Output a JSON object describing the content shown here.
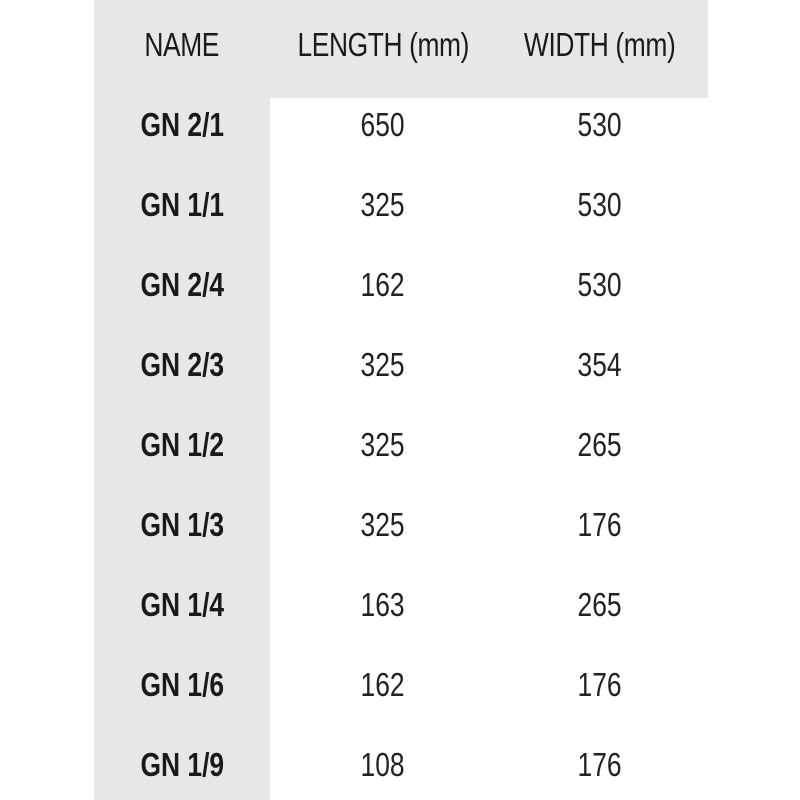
{
  "table": {
    "headers": [
      "NAME",
      "LENGTH (mm)",
      "WIDTH (mm)"
    ],
    "rows": [
      [
        "GN 2/1",
        "650",
        "530"
      ],
      [
        "GN 1/1",
        "325",
        "530"
      ],
      [
        "GN 2/4",
        "162",
        "530"
      ],
      [
        "GN 2/3",
        "325",
        "354"
      ],
      [
        "GN 1/2",
        "325",
        "265"
      ],
      [
        "GN 1/3",
        "325",
        "176"
      ],
      [
        "GN 1/4",
        "163",
        "265"
      ],
      [
        "GN 1/6",
        "162",
        "176"
      ],
      [
        "GN 1/9",
        "108",
        "176"
      ]
    ]
  },
  "colors": {
    "header_background": "#e8e7e6",
    "text": "#1a1a1a"
  }
}
